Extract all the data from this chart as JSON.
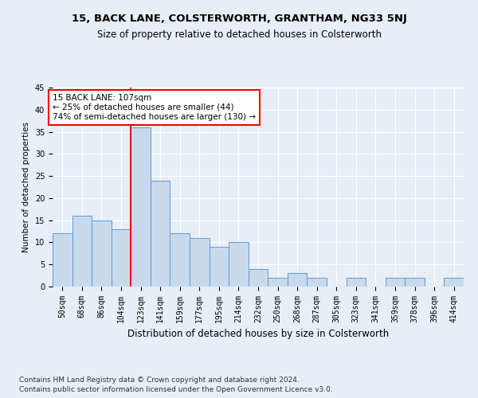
{
  "title": "15, BACK LANE, COLSTERWORTH, GRANTHAM, NG33 5NJ",
  "subtitle": "Size of property relative to detached houses in Colsterworth",
  "xlabel": "Distribution of detached houses by size in Colsterworth",
  "ylabel": "Number of detached properties",
  "categories": [
    "50sqm",
    "68sqm",
    "86sqm",
    "104sqm",
    "123sqm",
    "141sqm",
    "159sqm",
    "177sqm",
    "195sqm",
    "214sqm",
    "232sqm",
    "250sqm",
    "268sqm",
    "287sqm",
    "305sqm",
    "323sqm",
    "341sqm",
    "359sqm",
    "378sqm",
    "396sqm",
    "414sqm"
  ],
  "values": [
    12,
    16,
    15,
    13,
    36,
    24,
    12,
    11,
    9,
    10,
    4,
    2,
    3,
    2,
    0,
    2,
    0,
    2,
    2,
    0,
    2
  ],
  "bar_color": "#c9d9ec",
  "bar_edge_color": "#5b9bd5",
  "red_line_x": 3.5,
  "annotation_text": "15 BACK LANE: 107sqm\n← 25% of detached houses are smaller (44)\n74% of semi-detached houses are larger (130) →",
  "annotation_box_color": "white",
  "annotation_box_edge": "red",
  "ylim": [
    0,
    45
  ],
  "yticks": [
    0,
    5,
    10,
    15,
    20,
    25,
    30,
    35,
    40,
    45
  ],
  "footer1": "Contains HM Land Registry data © Crown copyright and database right 2024.",
  "footer2": "Contains public sector information licensed under the Open Government Licence v3.0.",
  "background_color": "#e8eef5",
  "plot_bg_color": "#e8eef5",
  "title_fontsize": 9.5,
  "subtitle_fontsize": 8.5,
  "xlabel_fontsize": 8.5,
  "ylabel_fontsize": 7.5,
  "tick_fontsize": 7,
  "annotation_fontsize": 7.5,
  "footer_fontsize": 6.5
}
